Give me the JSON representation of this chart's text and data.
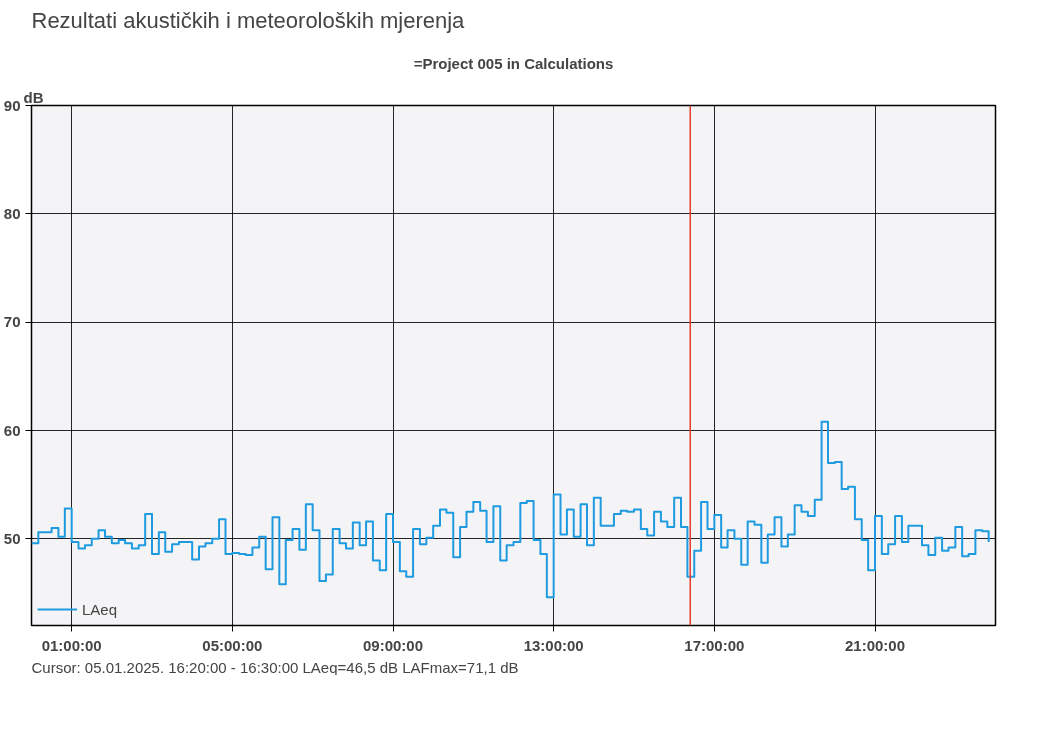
{
  "chart_data": {
    "type": "step",
    "title": "Rezultati akustičkih i meteoroloških mjerenja",
    "subtitle": "=Project 005 in Calculations",
    "ylabel": "dB",
    "annotations": [
      "Cursor: 05.01.2025. 16:20:00 - 16:30:00  LAeq=46,5 dB  LAFmax=71,1 dB"
    ],
    "x": [
      0,
      0.17,
      0.33,
      0.5,
      0.67,
      0.83,
      1,
      1.17,
      1.33,
      1.5,
      1.67,
      1.83,
      2,
      2.17,
      2.33,
      2.5,
      2.67,
      2.83,
      3,
      3.17,
      3.33,
      3.5,
      3.67,
      3.83,
      4,
      4.17,
      4.33,
      4.5,
      4.67,
      4.83,
      5,
      5.17,
      5.33,
      5.5,
      5.67,
      5.83,
      6,
      6.17,
      6.33,
      6.5,
      6.67,
      6.83,
      7,
      7.17,
      7.33,
      7.5,
      7.67,
      7.83,
      8,
      8.17,
      8.33,
      8.5,
      8.67,
      8.83,
      9,
      9.17,
      9.33,
      9.5,
      9.67,
      9.83,
      10,
      10.17,
      10.33,
      10.5,
      10.67,
      10.83,
      11,
      11.17,
      11.33,
      11.5,
      11.67,
      11.83,
      12,
      12.17,
      12.33,
      12.5,
      12.67,
      12.83,
      13,
      13.17,
      13.33,
      13.5,
      13.67,
      13.83,
      14,
      14.17,
      14.33,
      14.5,
      14.67,
      14.83,
      15,
      15.17,
      15.33,
      15.5,
      15.67,
      15.83,
      16,
      16.17,
      16.33,
      16.5,
      16.67,
      16.83,
      17,
      17.17,
      17.33,
      17.5,
      17.67,
      17.83,
      18,
      18.17,
      18.33,
      18.5,
      18.67,
      18.83,
      19,
      19.17,
      19.33,
      19.5,
      19.67,
      19.83,
      20,
      20.17,
      20.33,
      20.5,
      20.67,
      20.83,
      21,
      21.17,
      21.33,
      21.5,
      21.67,
      21.83,
      22,
      22.17,
      22.33,
      22.5,
      22.67,
      22.83,
      23,
      23.17,
      23.33,
      23.5,
      23.67,
      23.83
    ],
    "series": [
      {
        "name": "LAeq",
        "color": "#1e9be0",
        "values": [
          49.6,
          50.6,
          50.6,
          51.0,
          50.2,
          52.8,
          49.7,
          49.1,
          49.4,
          50.0,
          50.8,
          50.2,
          49.6,
          49.9,
          49.6,
          49.1,
          49.4,
          52.3,
          48.6,
          50.6,
          48.8,
          49.5,
          49.7,
          49.7,
          48.1,
          49.3,
          49.6,
          50.0,
          51.8,
          48.6,
          48.7,
          48.6,
          48.5,
          49.2,
          50.2,
          47.2,
          52.0,
          45.8,
          49.9,
          50.9,
          49.0,
          53.2,
          50.8,
          46.1,
          46.7,
          50.9,
          49.6,
          49.1,
          51.5,
          49.4,
          51.6,
          48.0,
          47.1,
          52.3,
          49.7,
          47.0,
          46.5,
          50.9,
          49.5,
          50.1,
          51.2,
          52.7,
          52.4,
          48.3,
          51.1,
          52.5,
          53.4,
          52.6,
          49.7,
          53.0,
          48.0,
          49.4,
          49.7,
          53.3,
          53.5,
          49.9,
          48.6,
          44.6,
          54.1,
          50.4,
          52.7,
          50.2,
          53.2,
          49.4,
          53.8,
          51.2,
          51.2,
          52.3,
          52.6,
          52.5,
          52.7,
          50.9,
          50.3,
          52.5,
          51.6,
          51.1,
          53.8,
          51.1,
          46.5,
          48.9,
          53.4,
          50.9,
          52.2,
          49.2,
          50.8,
          50.0,
          47.6,
          51.6,
          51.3,
          47.8,
          50.4,
          52.0,
          49.3,
          50.4,
          53.1,
          52.5,
          52.1,
          53.6,
          60.8,
          57.0,
          57.1,
          54.6,
          54.8,
          51.8,
          49.9,
          47.1,
          52.1,
          48.6,
          49.5,
          52.1,
          49.7,
          51.2,
          51.2,
          49.4,
          48.5,
          50.1,
          48.9,
          49.2,
          51.1,
          48.4,
          48.6,
          50.8,
          50.7,
          49.7
        ]
      }
    ],
    "xlim": [
      0,
      24
    ],
    "xticks": [
      {
        "value": 1,
        "label": "01:00:00"
      },
      {
        "value": 5,
        "label": "05:00:00"
      },
      {
        "value": 9,
        "label": "09:00:00"
      },
      {
        "value": 13,
        "label": "13:00:00"
      },
      {
        "value": 17,
        "label": "17:00:00"
      },
      {
        "value": 21,
        "label": "21:00:00"
      }
    ],
    "ylim": [
      42,
      90
    ],
    "yticks": [
      50,
      60,
      70,
      80,
      90
    ],
    "ref_lines": [
      {
        "axis": "x",
        "value": 16.4,
        "color": "#e53b2c"
      }
    ],
    "grid": true,
    "legend": "bottom left",
    "line_style": "solid"
  }
}
